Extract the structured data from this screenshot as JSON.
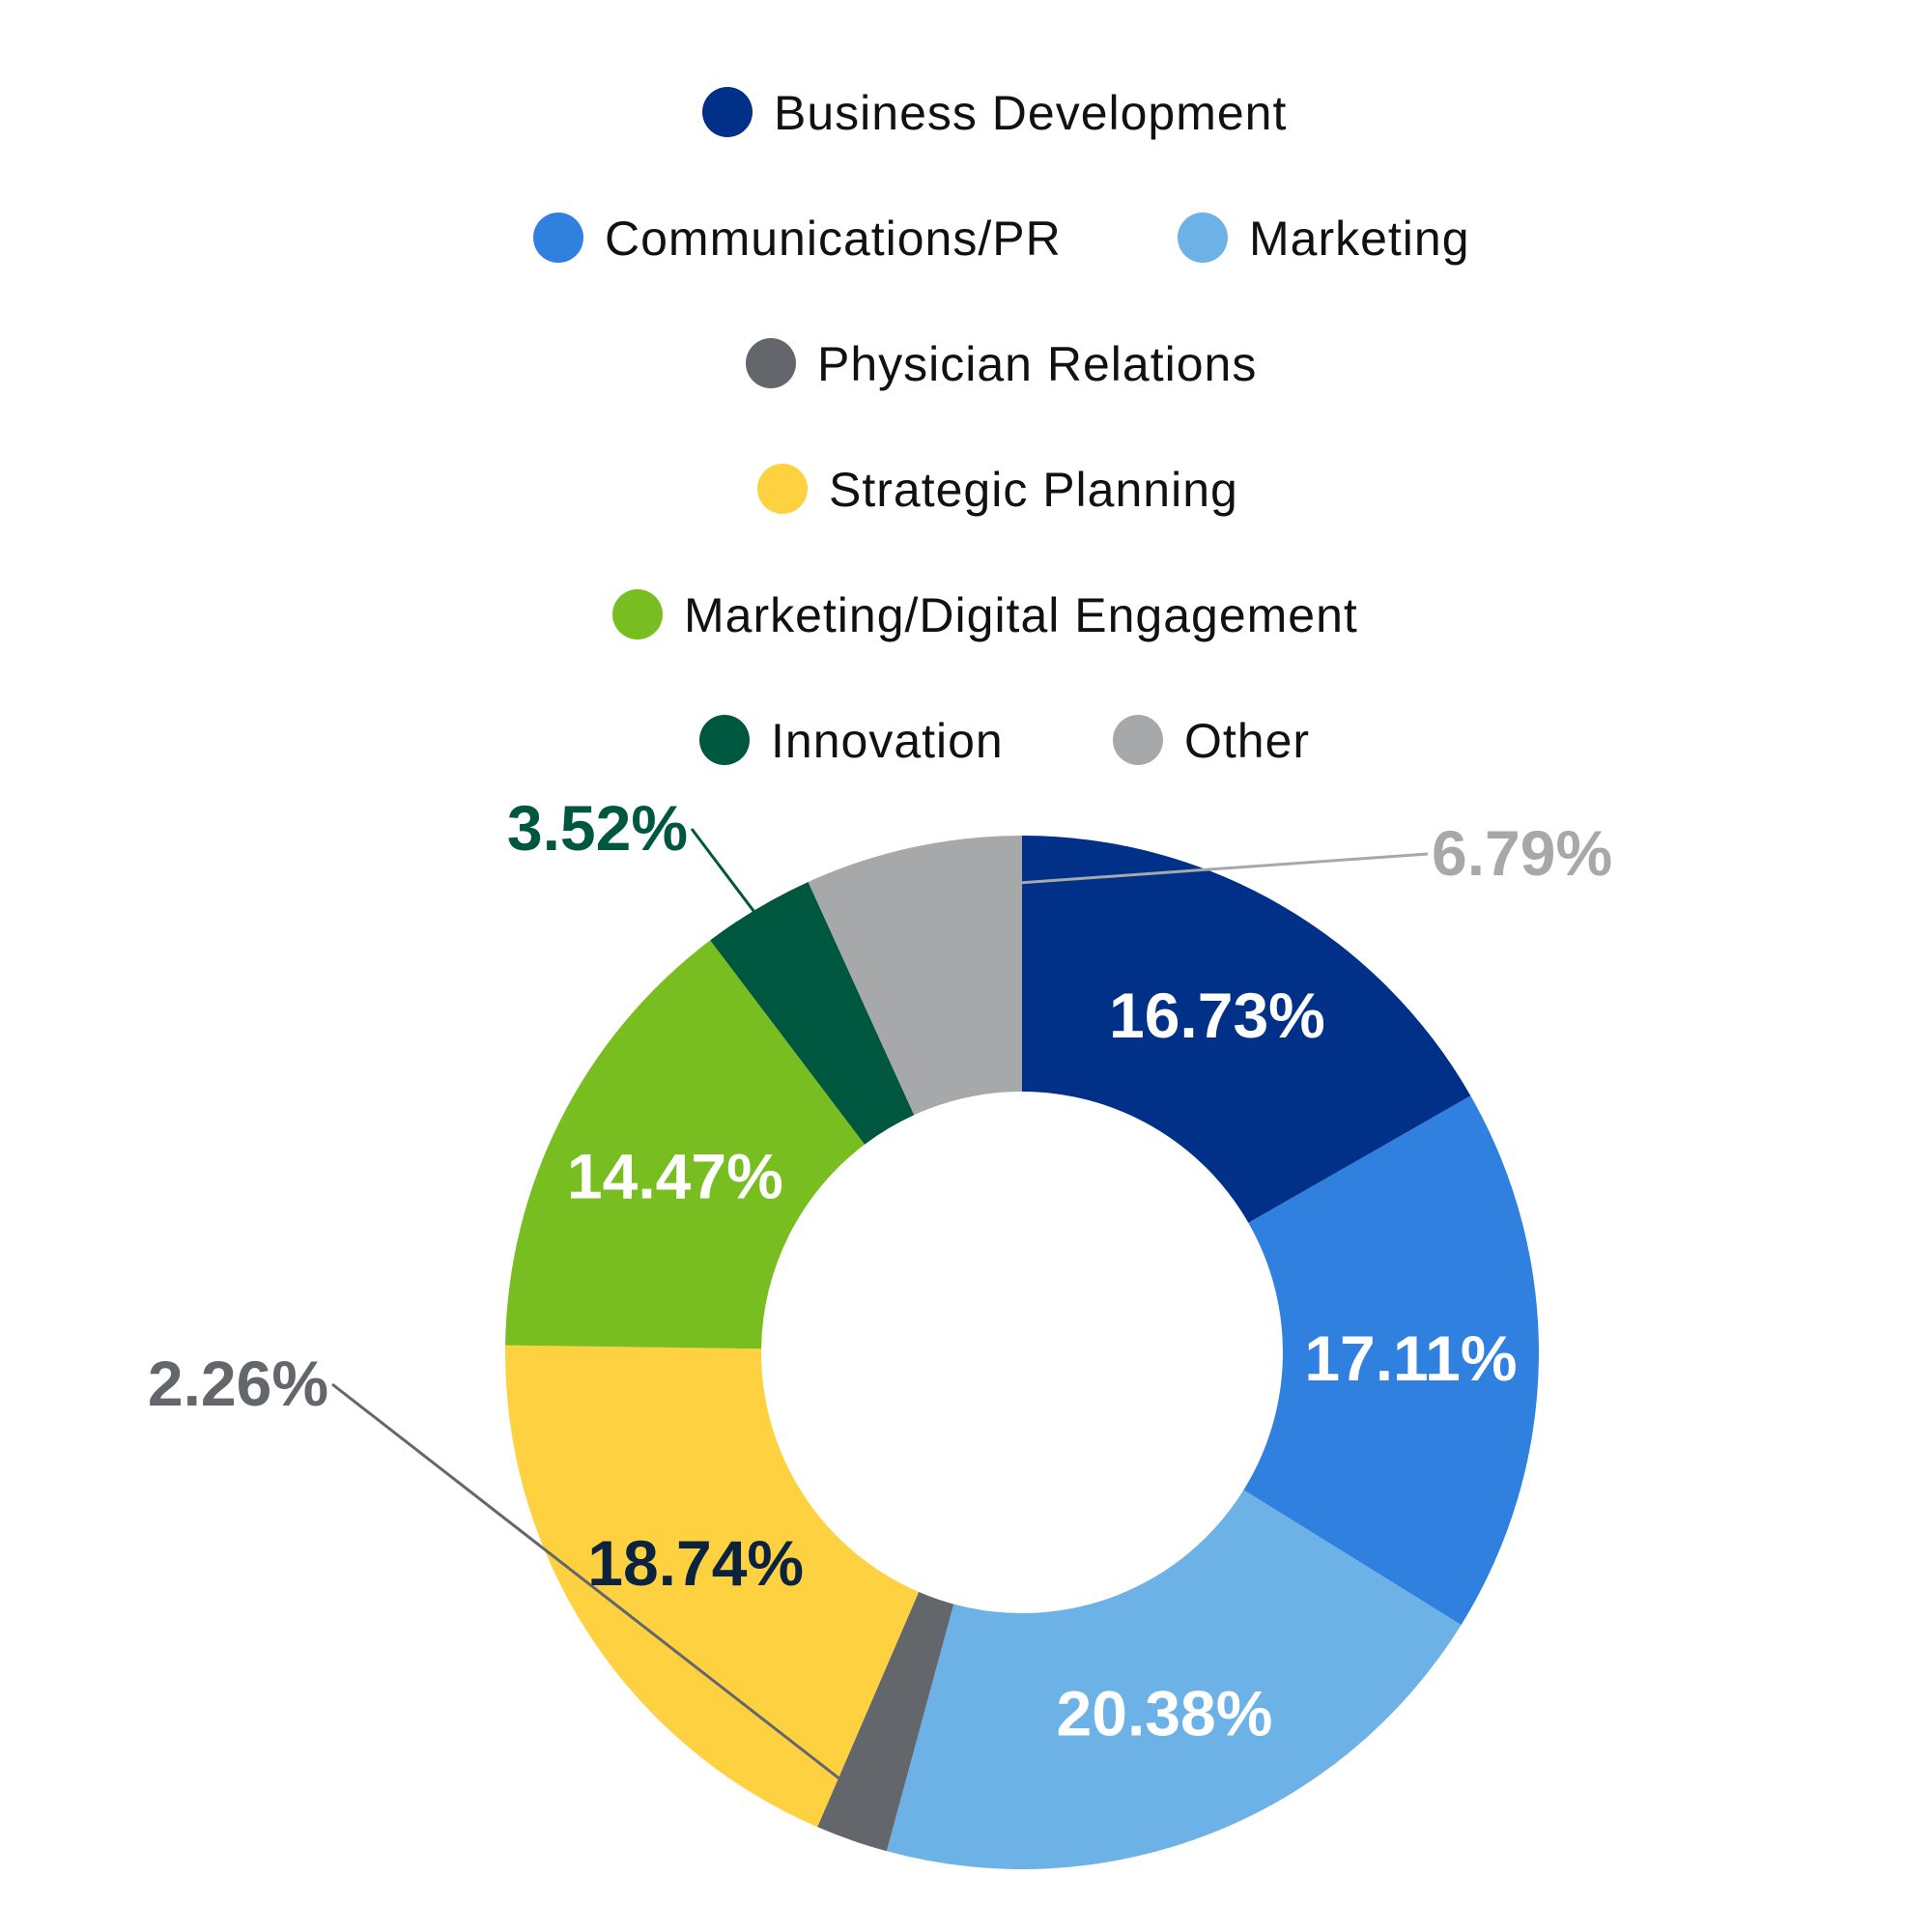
{
  "chart_data": {
    "type": "pie",
    "variant": "donut",
    "slices": [
      {
        "name": "Business Development",
        "value": 16.73,
        "label": "16.73%",
        "color": "#003087",
        "label_color": "#ffffff"
      },
      {
        "name": "Communications/PR",
        "value": 17.11,
        "label": "17.11%",
        "color": "#3080E0",
        "label_color": "#ffffff"
      },
      {
        "name": "Marketing",
        "value": 20.38,
        "label": "20.38%",
        "color": "#6CB2E6",
        "label_color": "#ffffff"
      },
      {
        "name": "Physician Relations",
        "value": 2.26,
        "label": "2.26%",
        "color": "#63666A",
        "label_color": "#63666A"
      },
      {
        "name": "Strategic Planning",
        "value": 18.74,
        "label": "18.74%",
        "color": "#FED141",
        "label_color": "#0C2340"
      },
      {
        "name": "Marketing/Digital Engagement",
        "value": 14.47,
        "label": "14.47%",
        "color": "#78BE20",
        "label_color": "#ffffff"
      },
      {
        "name": "Innovation",
        "value": 3.52,
        "label": "3.52%",
        "color": "#00573F",
        "label_color": "#00573F"
      },
      {
        "name": "Other",
        "value": 6.79,
        "label": "6.79%",
        "color": "#A7A8AA",
        "label_color": "#A7A8AA"
      }
    ],
    "legend_position": "top",
    "title": "",
    "xlabel": "",
    "ylabel": ""
  }
}
